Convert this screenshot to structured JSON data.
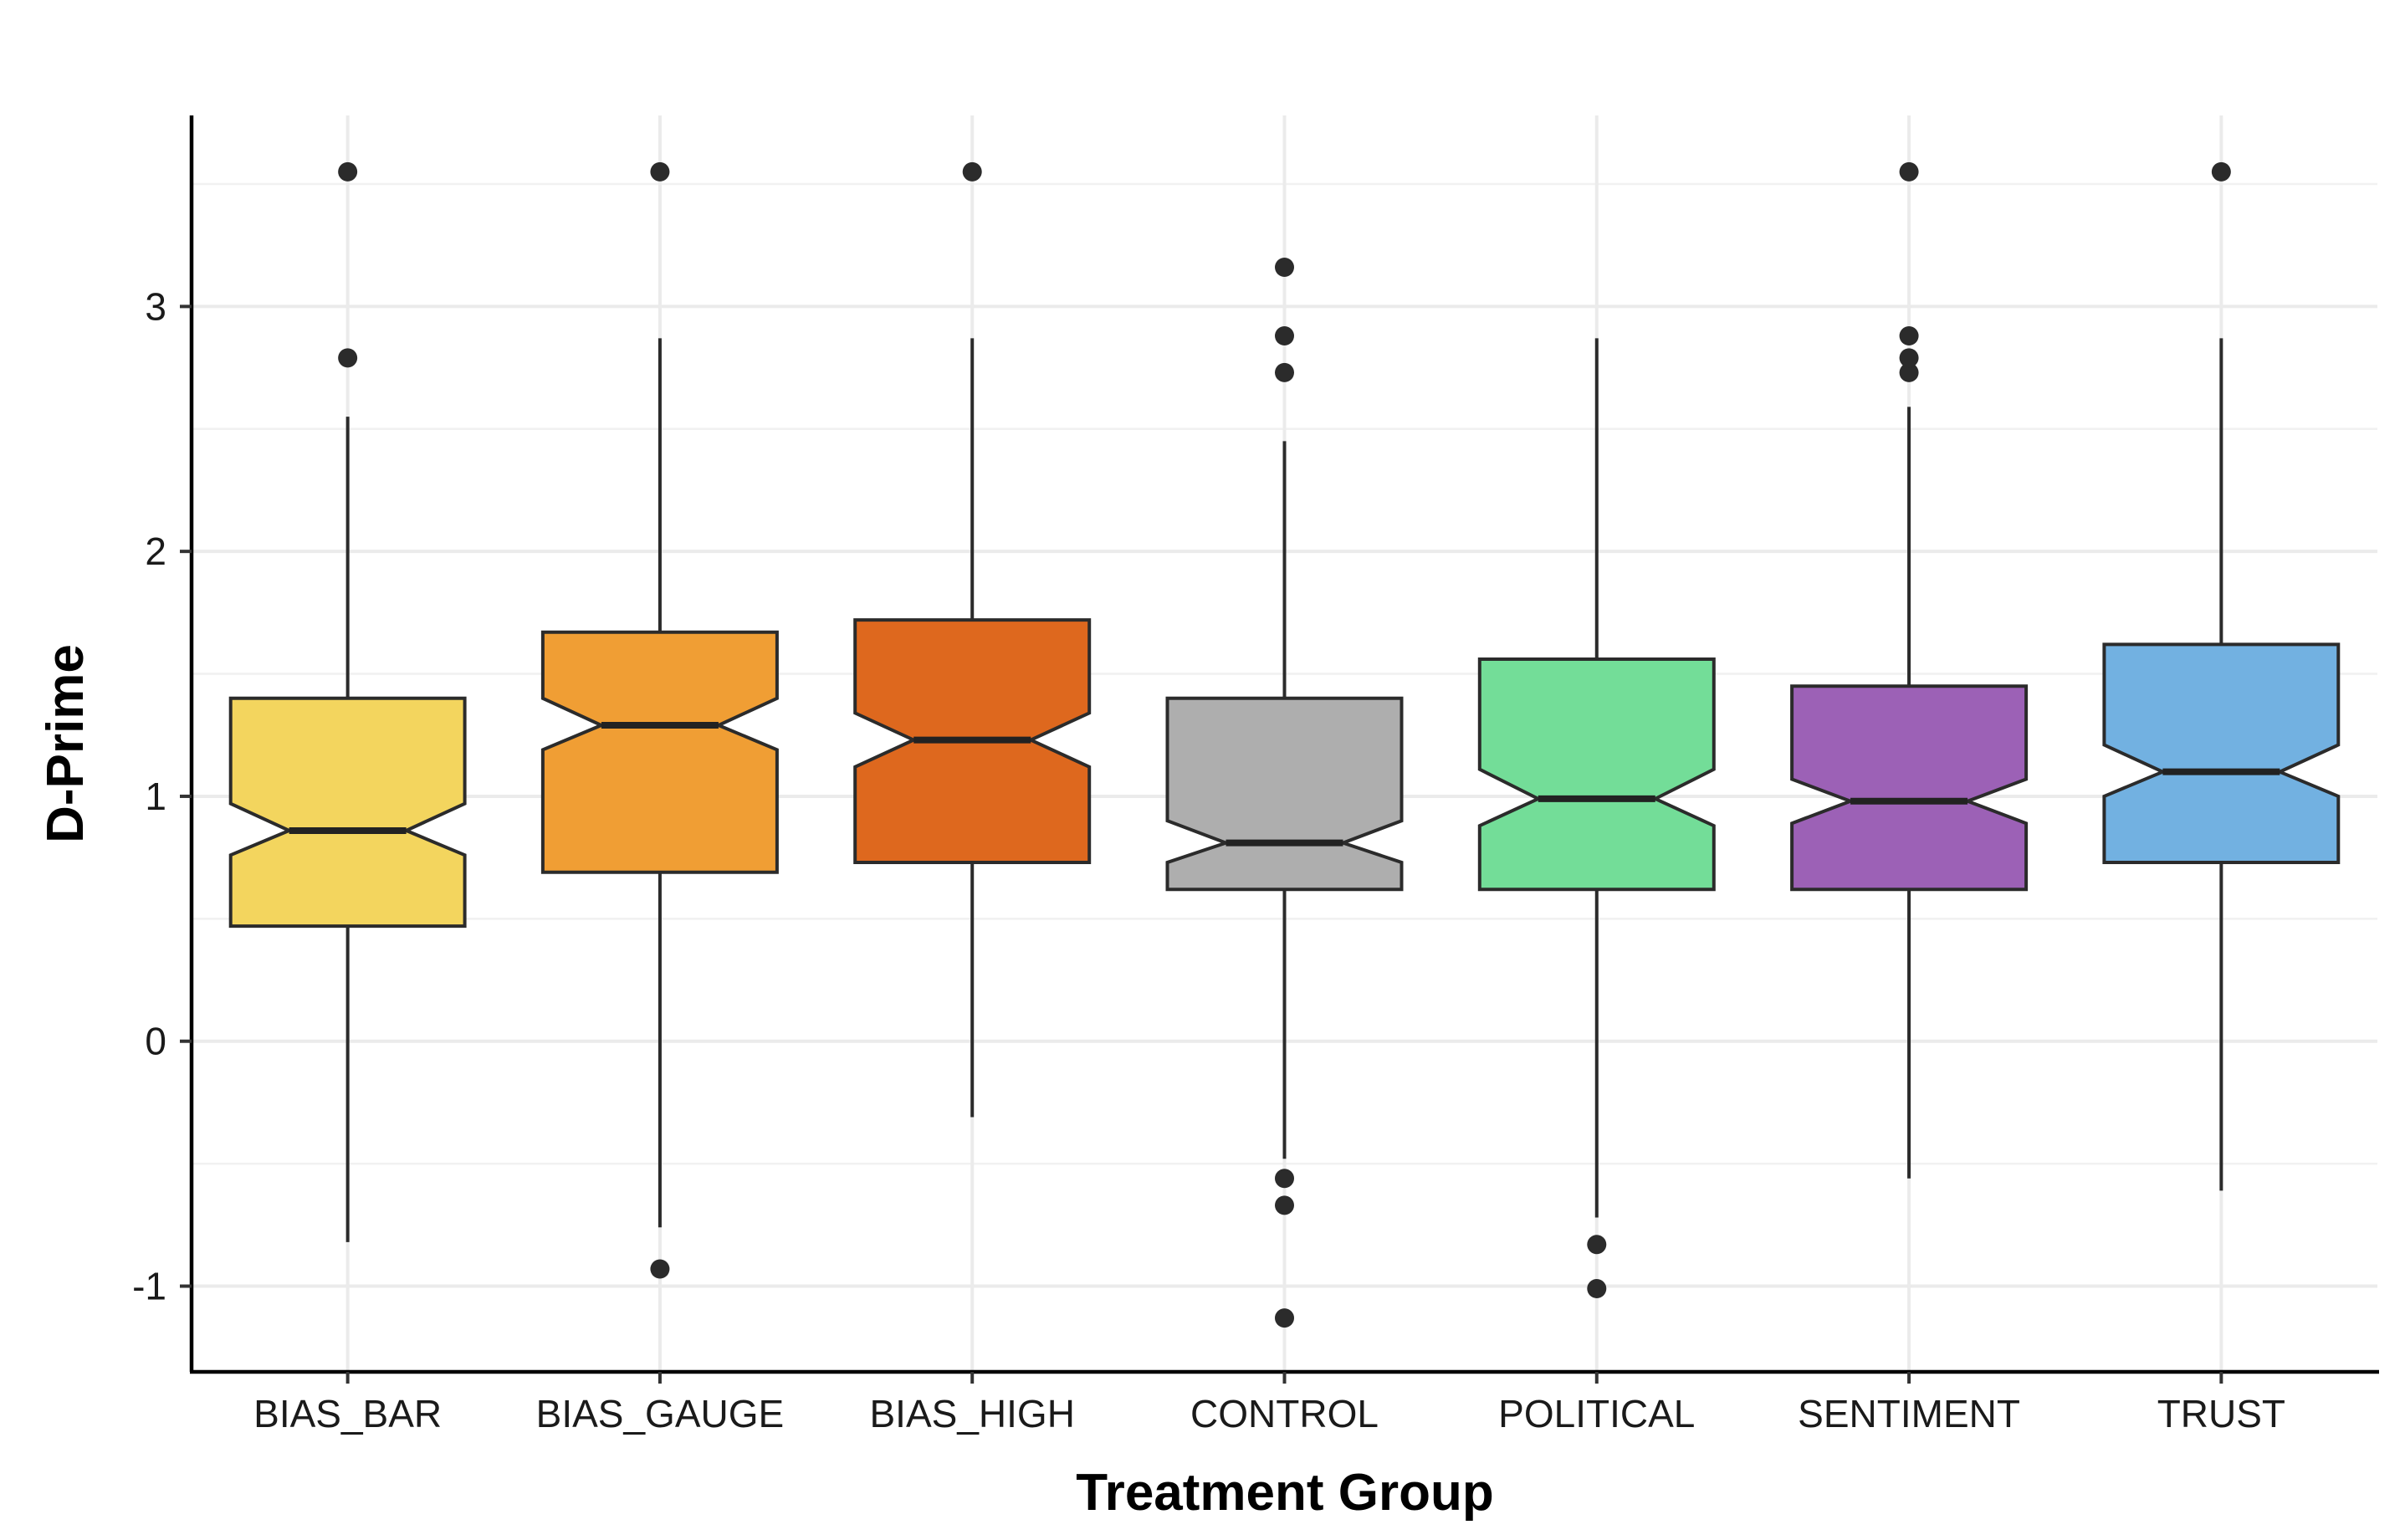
{
  "chart_data": {
    "type": "boxplot",
    "variant": "notched",
    "title": "",
    "xlabel": "Treatment Group",
    "ylabel": "D-Prime",
    "ylim": [
      -1.35,
      3.78
    ],
    "yticks": [
      -1,
      0,
      1,
      2,
      3
    ],
    "grid": true,
    "legend": "none",
    "categories": [
      "BIAS_BAR",
      "BIAS_GAUGE",
      "BIAS_HIGH",
      "CONTROL",
      "POLITICAL",
      "SENTIMENT",
      "TRUST"
    ],
    "groups": [
      {
        "name": "BIAS_BAR",
        "color": "#F3D55E",
        "whisker_low": -0.82,
        "q1": 0.47,
        "median": 0.86,
        "q3": 1.4,
        "whisker_high": 2.55,
        "notch_low": 0.76,
        "notch_high": 0.97,
        "outliers": [
          2.79,
          3.55
        ]
      },
      {
        "name": "BIAS_GAUGE",
        "color": "#F09E34",
        "whisker_low": -0.76,
        "q1": 0.69,
        "median": 1.29,
        "q3": 1.67,
        "whisker_high": 2.87,
        "notch_low": 1.19,
        "notch_high": 1.4,
        "outliers": [
          -0.93,
          3.55
        ]
      },
      {
        "name": "BIAS_HIGH",
        "color": "#DE681E",
        "whisker_low": -0.31,
        "q1": 0.73,
        "median": 1.23,
        "q3": 1.72,
        "whisker_high": 2.87,
        "notch_low": 1.12,
        "notch_high": 1.34,
        "outliers": [
          3.55
        ]
      },
      {
        "name": "CONTROL",
        "color": "#AEAEAE",
        "whisker_low": -0.48,
        "q1": 0.62,
        "median": 0.81,
        "q3": 1.4,
        "whisker_high": 2.45,
        "notch_low": 0.73,
        "notch_high": 0.9,
        "outliers": [
          -0.56,
          -0.67,
          -1.13,
          2.73,
          2.88,
          3.16
        ]
      },
      {
        "name": "POLITICAL",
        "color": "#73DD98",
        "whisker_low": -0.72,
        "q1": 0.62,
        "median": 0.99,
        "q3": 1.56,
        "whisker_high": 2.87,
        "notch_low": 0.88,
        "notch_high": 1.11,
        "outliers": [
          -0.83,
          -1.01
        ]
      },
      {
        "name": "SENTIMENT",
        "color": "#9C61B6",
        "whisker_low": -0.56,
        "q1": 0.62,
        "median": 0.98,
        "q3": 1.45,
        "whisker_high": 2.59,
        "notch_low": 0.89,
        "notch_high": 1.07,
        "outliers": [
          2.73,
          2.79,
          2.88,
          3.55
        ]
      },
      {
        "name": "TRUST",
        "color": "#72B1E1",
        "whisker_low": -0.61,
        "q1": 0.73,
        "median": 1.1,
        "q3": 1.62,
        "whisker_high": 2.87,
        "notch_low": 1.0,
        "notch_high": 1.21,
        "outliers": [
          3.55
        ]
      }
    ]
  }
}
